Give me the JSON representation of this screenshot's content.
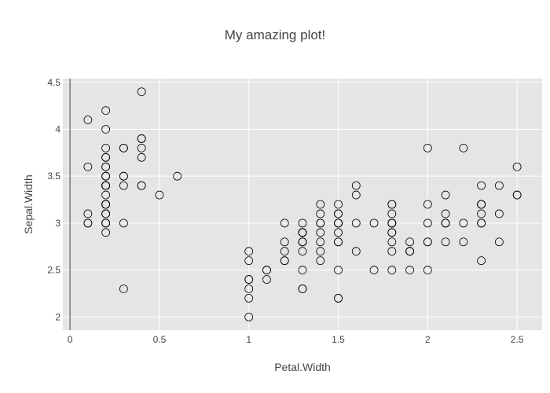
{
  "chart_data": {
    "type": "scatter",
    "title": "My amazing plot!",
    "xlabel": "Petal.Width",
    "ylabel": "Sepal.Width",
    "xlim": [
      -0.04,
      2.64
    ],
    "ylim": [
      1.86,
      4.54
    ],
    "xticks": [
      0,
      0.5,
      1,
      1.5,
      2,
      2.5
    ],
    "xtick_labels": [
      "0",
      "0.5",
      "1",
      "1.5",
      "2",
      "2.5"
    ],
    "yticks": [
      2,
      2.5,
      3,
      3.5,
      4,
      4.5
    ],
    "ytick_labels": [
      "2",
      "2.5",
      "3",
      "3.5",
      "4",
      "4.5"
    ],
    "grid": true,
    "legend": "none",
    "colors": {
      "plot_bg": "#e5e5e5",
      "grid": "#ffffff",
      "zero_line": "#444444",
      "marker_stroke": "#000000",
      "marker_fill": "none"
    },
    "marker": "open-circle",
    "x": [
      0.2,
      0.2,
      0.2,
      0.2,
      0.2,
      0.4,
      0.3,
      0.2,
      0.2,
      0.1,
      0.2,
      0.2,
      0.1,
      0.1,
      0.2,
      0.4,
      0.4,
      0.3,
      0.3,
      0.3,
      0.2,
      0.4,
      0.2,
      0.5,
      0.2,
      0.2,
      0.4,
      0.2,
      0.2,
      0.2,
      0.2,
      0.4,
      0.1,
      0.2,
      0.2,
      0.2,
      0.2,
      0.1,
      0.2,
      0.2,
      0.3,
      0.3,
      0.2,
      0.6,
      0.4,
      0.3,
      0.2,
      0.2,
      0.2,
      0.2,
      1.4,
      1.5,
      1.5,
      1.3,
      1.5,
      1.3,
      1.6,
      1.0,
      1.3,
      1.4,
      1.0,
      1.5,
      1.0,
      1.4,
      1.3,
      1.4,
      1.5,
      1.0,
      1.5,
      1.1,
      1.8,
      1.3,
      1.5,
      1.2,
      1.3,
      1.4,
      1.4,
      1.7,
      1.5,
      1.0,
      1.1,
      1.0,
      1.2,
      1.6,
      1.5,
      1.6,
      1.5,
      1.3,
      1.3,
      1.3,
      1.2,
      1.4,
      1.2,
      1.0,
      1.3,
      1.2,
      1.3,
      1.3,
      1.1,
      1.3,
      2.5,
      1.9,
      2.1,
      1.8,
      2.2,
      2.1,
      1.7,
      1.8,
      1.8,
      2.5,
      2.0,
      1.9,
      2.1,
      2.0,
      2.4,
      2.3,
      1.8,
      2.2,
      2.3,
      1.5,
      2.3,
      2.0,
      2.0,
      1.8,
      2.1,
      1.8,
      1.8,
      1.8,
      2.1,
      1.6,
      1.9,
      2.0,
      2.2,
      1.5,
      1.4,
      2.3,
      2.4,
      1.8,
      1.8,
      2.1,
      2.4,
      2.3,
      1.9,
      2.3,
      2.5,
      2.3,
      1.9,
      2.0,
      2.3,
      1.8
    ],
    "y": [
      3.5,
      3.0,
      3.2,
      3.1,
      3.6,
      3.9,
      3.4,
      3.4,
      2.9,
      3.1,
      3.7,
      3.4,
      3.0,
      3.0,
      4.0,
      4.4,
      3.9,
      3.5,
      3.8,
      3.8,
      3.4,
      3.7,
      3.6,
      3.3,
      3.4,
      3.0,
      3.4,
      3.5,
      3.4,
      3.2,
      3.1,
      3.4,
      4.1,
      4.2,
      3.1,
      3.2,
      3.5,
      3.6,
      3.0,
      3.4,
      3.5,
      2.3,
      3.2,
      3.5,
      3.8,
      3.0,
      3.8,
      3.2,
      3.7,
      3.3,
      3.2,
      3.2,
      3.1,
      2.3,
      2.8,
      2.8,
      3.3,
      2.4,
      2.9,
      2.7,
      2.0,
      3.0,
      2.2,
      2.9,
      2.9,
      3.1,
      3.0,
      2.7,
      2.2,
      2.5,
      3.2,
      2.8,
      2.5,
      2.8,
      2.9,
      3.0,
      2.8,
      3.0,
      2.9,
      2.6,
      2.4,
      2.4,
      2.7,
      2.7,
      3.0,
      3.4,
      3.1,
      2.3,
      3.0,
      2.5,
      2.6,
      3.0,
      2.6,
      2.3,
      2.7,
      3.0,
      2.9,
      2.9,
      2.5,
      2.8,
      3.3,
      2.7,
      3.0,
      2.9,
      3.0,
      3.0,
      2.5,
      2.9,
      2.5,
      3.6,
      3.2,
      2.7,
      3.0,
      2.5,
      2.8,
      3.2,
      3.0,
      3.8,
      2.6,
      2.2,
      3.2,
      2.8,
      2.8,
      2.7,
      3.3,
      3.2,
      2.8,
      3.0,
      2.8,
      3.0,
      2.8,
      3.8,
      2.8,
      2.8,
      2.6,
      3.0,
      3.4,
      3.1,
      3.0,
      3.1,
      3.1,
      3.1,
      2.7,
      3.2,
      3.3,
      3.0,
      2.5,
      3.0,
      3.4,
      3.0
    ]
  }
}
